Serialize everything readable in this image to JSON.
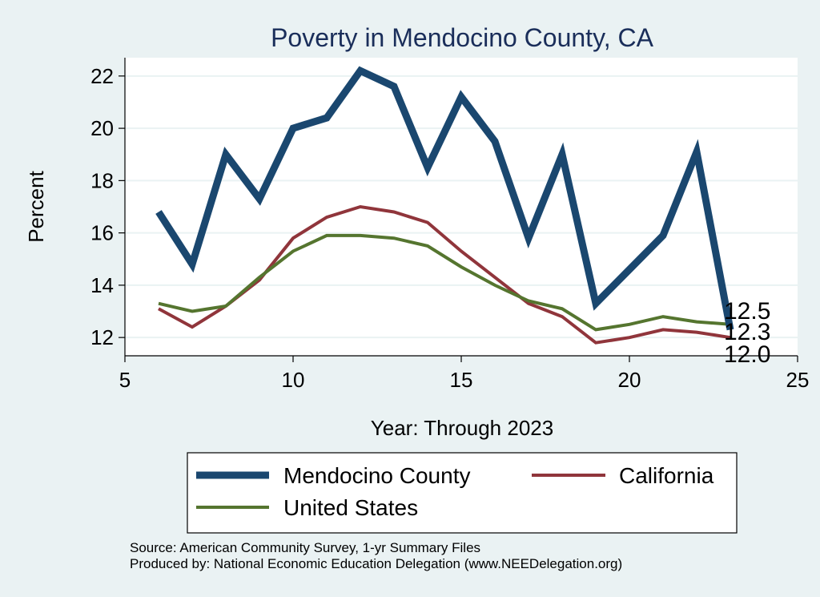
{
  "chart_data": {
    "type": "line",
    "title": "Poverty in Mendocino County, CA",
    "xlabel": "Year: Through 2023",
    "ylabel": "Percent",
    "xlim": [
      5,
      25
    ],
    "ylim": [
      11.3,
      22.7
    ],
    "xticks": [
      5,
      10,
      15,
      20,
      25
    ],
    "yticks": [
      12,
      14,
      16,
      18,
      20,
      22
    ],
    "grid": true,
    "legend_position": "bottom",
    "series": [
      {
        "name": "Mendocino County",
        "color": "#1a476f",
        "width": 9,
        "x": [
          6,
          7,
          8,
          9,
          10,
          11,
          12,
          13,
          14,
          15,
          16,
          17,
          18,
          19,
          20,
          21,
          22,
          23
        ],
        "values": [
          16.8,
          14.8,
          19.0,
          17.3,
          20.0,
          20.4,
          22.2,
          21.6,
          18.5,
          21.2,
          19.5,
          15.8,
          19.0,
          13.3,
          14.6,
          15.9,
          19.1,
          12.3
        ]
      },
      {
        "name": "California",
        "color": "#90353b",
        "width": 4,
        "x": [
          6,
          7,
          8,
          9,
          10,
          11,
          12,
          13,
          14,
          15,
          16,
          17,
          18,
          19,
          20,
          21,
          22,
          23
        ],
        "values": [
          13.1,
          12.4,
          13.2,
          14.2,
          15.8,
          16.6,
          17.0,
          16.8,
          16.4,
          15.3,
          14.3,
          13.3,
          12.8,
          11.8,
          12.0,
          12.3,
          12.2,
          12.0
        ]
      },
      {
        "name": "United States",
        "color": "#55752f",
        "width": 4,
        "x": [
          6,
          7,
          8,
          9,
          10,
          11,
          12,
          13,
          14,
          15,
          16,
          17,
          18,
          19,
          20,
          21,
          22,
          23
        ],
        "values": [
          13.3,
          13.0,
          13.2,
          14.3,
          15.3,
          15.9,
          15.9,
          15.8,
          15.5,
          14.7,
          14.0,
          13.4,
          13.1,
          12.3,
          12.5,
          12.8,
          12.6,
          12.5
        ]
      }
    ],
    "end_labels": [
      "12.5",
      "12.3",
      "12.0"
    ]
  },
  "notes": {
    "source": "Source: American Community Survey, 1-yr Summary Files",
    "produced": "Produced by: National Economic Education Delegation (www.NEEDelegation.org)"
  }
}
